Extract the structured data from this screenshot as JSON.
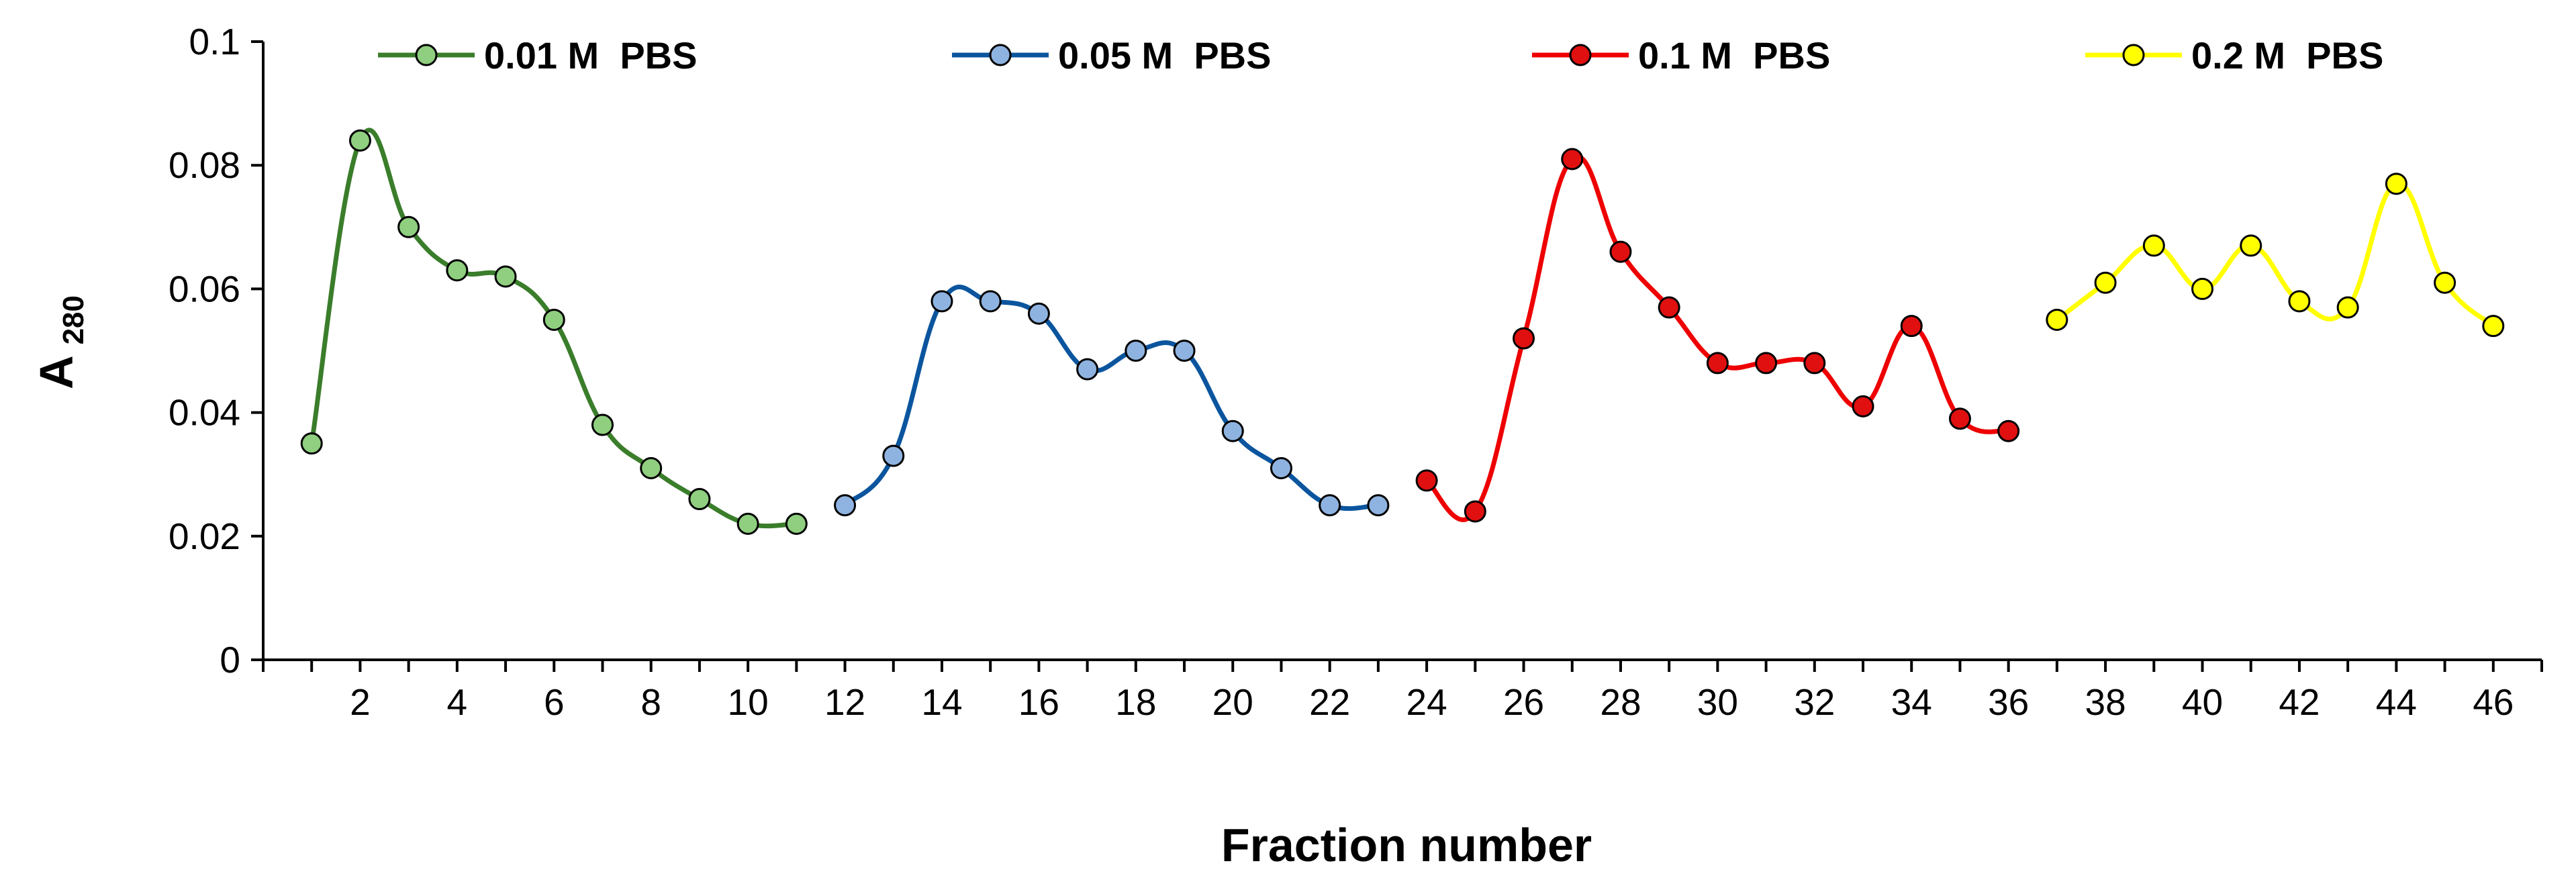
{
  "chart_data": {
    "type": "line",
    "title": "",
    "xlabel": "Fraction number",
    "ylabel": {
      "main": "A",
      "sub": "280"
    },
    "xlim": [
      0,
      47
    ],
    "ylim": [
      0,
      0.1
    ],
    "x_ticks": [
      2,
      4,
      6,
      8,
      10,
      12,
      14,
      16,
      18,
      20,
      22,
      24,
      26,
      28,
      30,
      32,
      34,
      36,
      38,
      40,
      42,
      44,
      46
    ],
    "y_ticks": [
      0,
      0.02,
      0.04,
      0.06,
      0.08,
      0.1
    ],
    "y_tick_labels": [
      "0",
      "0.02",
      "0.04",
      "0.06",
      "0.08",
      "0.1"
    ],
    "grid": false,
    "legend_position": "top",
    "series": [
      {
        "name": "0.01 M  PBS",
        "line_color": "#3a7d2a",
        "marker_color": "#8fcf7f",
        "x": [
          1,
          2,
          3,
          4,
          5,
          6,
          7,
          8,
          9,
          10,
          11
        ],
        "values": [
          0.035,
          0.084,
          0.07,
          0.063,
          0.062,
          0.055,
          0.038,
          0.031,
          0.026,
          0.022,
          0.022
        ]
      },
      {
        "name": "0.05 M  PBS",
        "line_color": "#0b559e",
        "marker_color": "#8fb3e0",
        "x": [
          12,
          13,
          14,
          15,
          16,
          17,
          18,
          19,
          20,
          21,
          22,
          23
        ],
        "values": [
          0.025,
          0.033,
          0.058,
          0.058,
          0.056,
          0.047,
          0.05,
          0.05,
          0.037,
          0.031,
          0.025,
          0.025
        ]
      },
      {
        "name": "0.1 M  PBS",
        "line_color": "#ee0000",
        "marker_color": "#e01010",
        "x": [
          24,
          25,
          26,
          27,
          28,
          29,
          30,
          31,
          32,
          33,
          34,
          35,
          36
        ],
        "values": [
          0.029,
          0.024,
          0.052,
          0.081,
          0.066,
          0.057,
          0.048,
          0.048,
          0.048,
          0.041,
          0.054,
          0.039,
          0.037
        ]
      },
      {
        "name": "0.2 M  PBS",
        "line_color": "#ffff00",
        "marker_color": "#ffff00",
        "x": [
          37,
          38,
          39,
          40,
          41,
          42,
          43,
          44,
          45,
          46
        ],
        "values": [
          0.055,
          0.061,
          0.067,
          0.06,
          0.067,
          0.058,
          0.057,
          0.077,
          0.061,
          0.054
        ]
      }
    ]
  }
}
